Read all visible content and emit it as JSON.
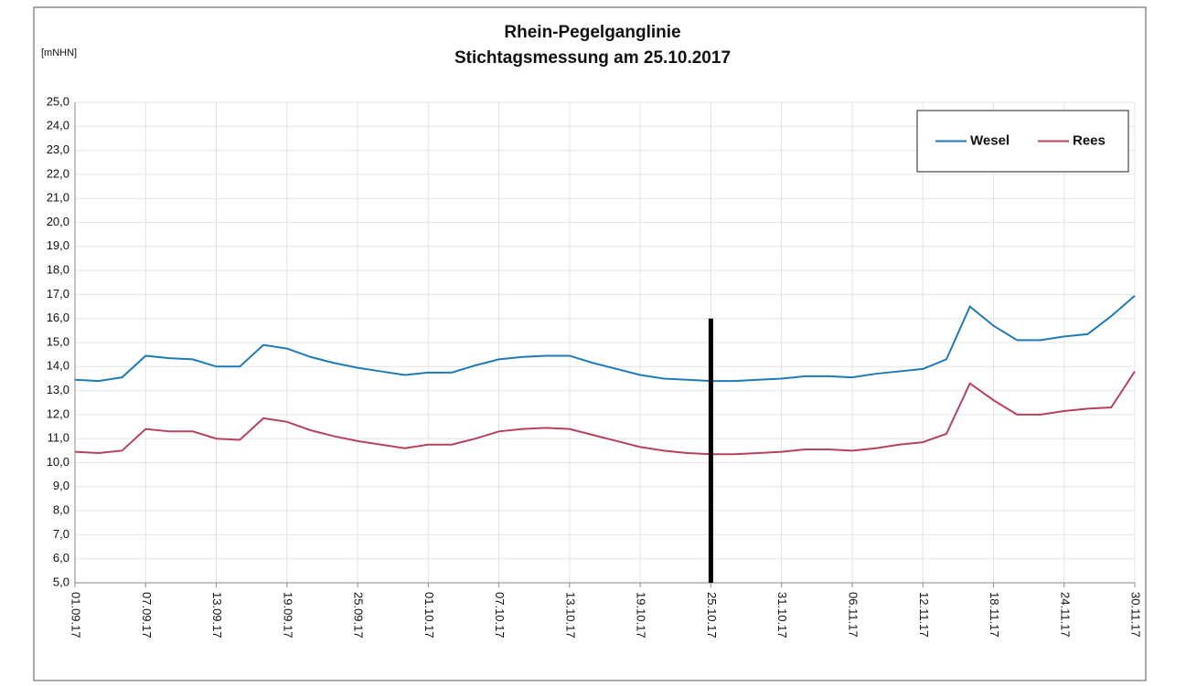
{
  "chart_data": {
    "type": "line",
    "title": "Rhein-Pegelganglinie",
    "subtitle": "Stichtagsmessung am 25.10.2017",
    "y_label": "[mNHN]",
    "categories": [
      "01.09.17",
      null,
      null,
      "07.09.17",
      null,
      null,
      "13.09.17",
      null,
      null,
      "19.09.17",
      null,
      null,
      "25.09.17",
      null,
      null,
      "01.10.17",
      null,
      null,
      "07.10.17",
      null,
      null,
      "13.10.17",
      null,
      null,
      "19.10.17",
      null,
      null,
      "25.10.17",
      null,
      null,
      "31.10.17",
      null,
      null,
      "06.11.17",
      null,
      null,
      "12.11.17",
      null,
      null,
      "18.11.17",
      null,
      null,
      "24.11.17",
      null,
      null,
      "30.11.17"
    ],
    "series": [
      {
        "name": "Wesel",
        "color": "#1f7ab8",
        "values": [
          13.45,
          13.4,
          13.55,
          14.45,
          14.35,
          14.3,
          14.0,
          14.0,
          14.9,
          14.75,
          14.4,
          14.15,
          13.95,
          13.8,
          13.65,
          13.75,
          13.75,
          14.05,
          14.3,
          14.4,
          14.45,
          14.45,
          14.15,
          13.9,
          13.65,
          13.5,
          13.45,
          13.4,
          13.4,
          13.45,
          13.5,
          13.6,
          13.6,
          13.55,
          13.7,
          13.8,
          13.9,
          14.3,
          16.5,
          15.7,
          15.1,
          15.1,
          15.25,
          15.35,
          16.1,
          16.95
        ]
      },
      {
        "name": "Rees",
        "color": "#b8415e",
        "values": [
          10.45,
          10.4,
          10.5,
          11.4,
          11.3,
          11.3,
          11.0,
          10.95,
          11.85,
          11.7,
          11.35,
          11.1,
          10.9,
          10.75,
          10.6,
          10.75,
          10.75,
          11.0,
          11.3,
          11.4,
          11.45,
          11.4,
          11.15,
          10.9,
          10.65,
          10.5,
          10.4,
          10.35,
          10.35,
          10.4,
          10.45,
          10.55,
          10.55,
          10.5,
          10.6,
          10.75,
          10.85,
          11.2,
          13.3,
          12.6,
          12.0,
          12.0,
          12.15,
          12.25,
          12.3,
          13.8
        ]
      }
    ],
    "reference_line": {
      "x": "25.10.17",
      "top": 16,
      "color": "#000000"
    },
    "ylim": [
      5,
      25
    ],
    "yticks": [
      {
        "value": 5,
        "label": "5,0"
      },
      {
        "value": 6,
        "label": "6,0"
      },
      {
        "value": 7,
        "label": "7,0"
      },
      {
        "value": 8,
        "label": "8,0"
      },
      {
        "value": 9,
        "label": "9,0"
      },
      {
        "value": 10,
        "label": "10,0"
      },
      {
        "value": 11,
        "label": "11,0"
      },
      {
        "value": 12,
        "label": "12,0"
      },
      {
        "value": 13,
        "label": "13,0"
      },
      {
        "value": 14,
        "label": "14,0"
      },
      {
        "value": 15,
        "label": "15,0"
      },
      {
        "value": 16,
        "label": "16,0"
      },
      {
        "value": 17,
        "label": "17,0"
      },
      {
        "value": 18,
        "label": "18,0"
      },
      {
        "value": 19,
        "label": "19,0"
      },
      {
        "value": 20,
        "label": "20,0"
      },
      {
        "value": 21,
        "label": "21,0"
      },
      {
        "value": 22,
        "label": "22,0"
      },
      {
        "value": 23,
        "label": "23,0"
      },
      {
        "value": 24,
        "label": "24,0"
      },
      {
        "value": 25,
        "label": "25,0"
      }
    ],
    "grid": true,
    "legend": "top-right"
  }
}
